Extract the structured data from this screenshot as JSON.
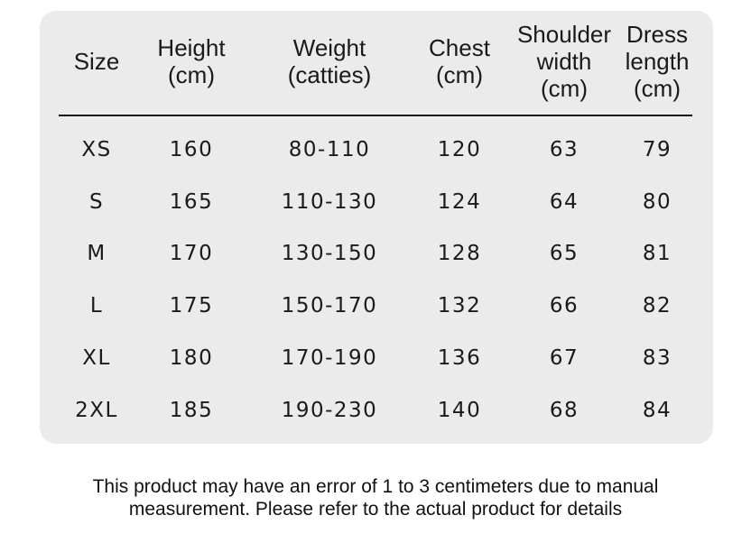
{
  "table": {
    "header": [
      [
        "Size"
      ],
      [
        "Height",
        "(cm)"
      ],
      [
        "Weight",
        "(catties)"
      ],
      [
        "Chest",
        "(cm)"
      ],
      [
        "Shoulder",
        "width",
        "(cm)"
      ],
      [
        "Dress",
        "length",
        "(cm)"
      ]
    ],
    "rows": [
      [
        "XS",
        "160",
        "80-110",
        "120",
        "63",
        "79"
      ],
      [
        "S",
        "165",
        "110-130",
        "124",
        "64",
        "80"
      ],
      [
        "M",
        "170",
        "130-150",
        "128",
        "65",
        "81"
      ],
      [
        "L",
        "175",
        "150-170",
        "132",
        "66",
        "82"
      ],
      [
        "XL",
        "180",
        "170-190",
        "136",
        "67",
        "83"
      ],
      [
        "2XL",
        "185",
        "190-230",
        "140",
        "68",
        "84"
      ]
    ]
  },
  "note": [
    "This product may have an error of 1 to 3 centimeters due to manual",
    "measurement. Please refer to the actual product for details"
  ]
}
